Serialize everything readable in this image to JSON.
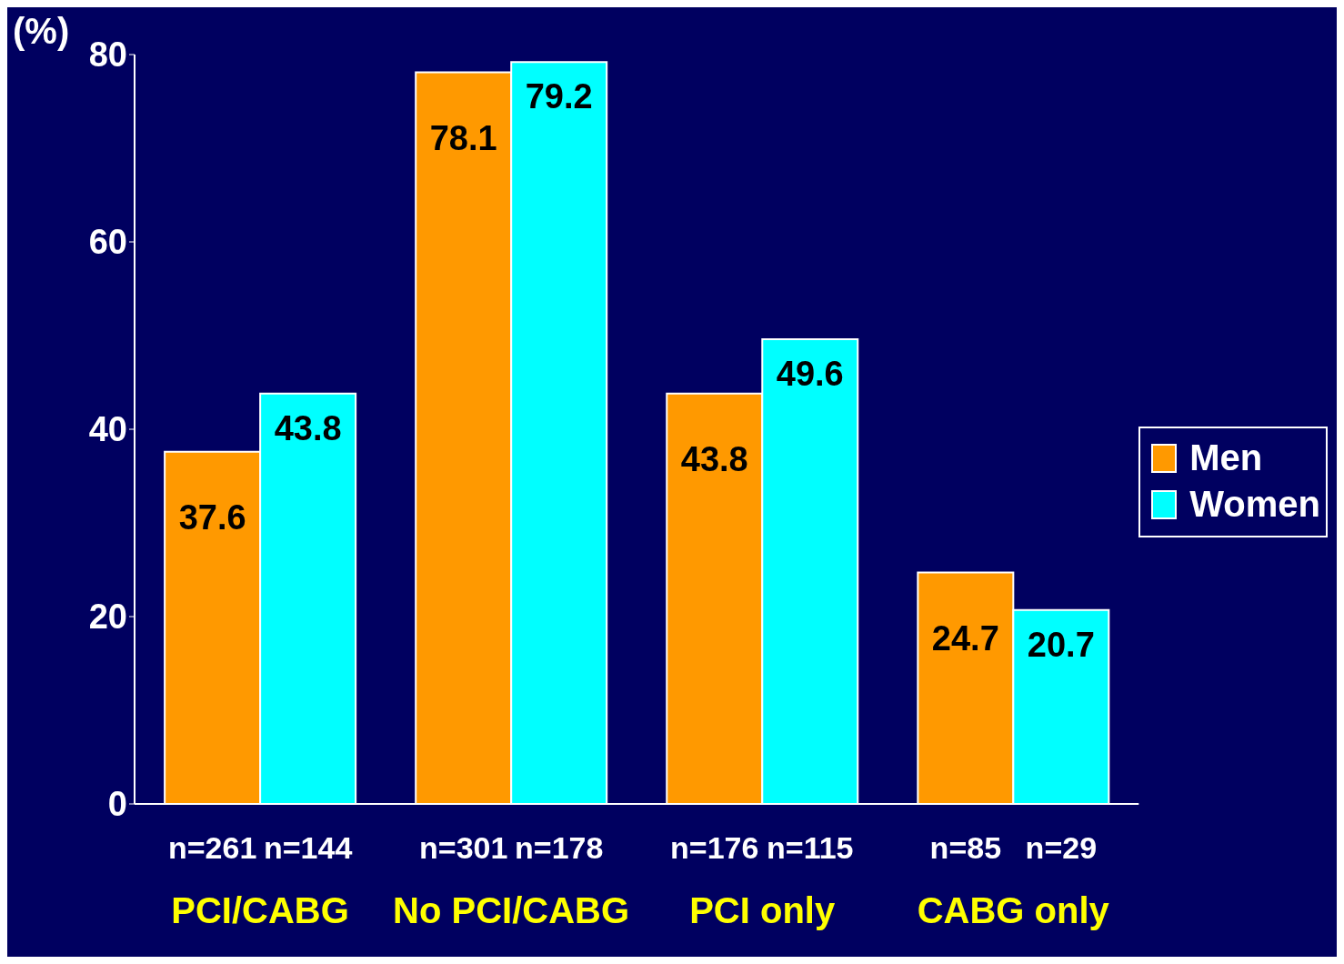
{
  "chart_data": {
    "type": "bar",
    "ylabel": "(%)",
    "categories": [
      "PCI/CABG",
      "No PCI/CABG",
      "PCI only",
      "CABG only"
    ],
    "series": [
      {
        "name": "Men",
        "color": "#ff9900",
        "values": [
          37.6,
          78.1,
          43.8,
          24.7
        ]
      },
      {
        "name": "Women",
        "color": "#00ffff",
        "values": [
          43.8,
          79.2,
          49.6,
          20.7
        ]
      }
    ],
    "ylim": [
      0,
      80
    ],
    "yticks": [
      0,
      20,
      40,
      60,
      80
    ],
    "data_labels": true,
    "legend": "right",
    "grid": false,
    "annotations": [
      "n=261",
      "n=144",
      "n=301",
      "n=178",
      "n=176",
      "n=115",
      "n=85",
      "n=29"
    ]
  }
}
